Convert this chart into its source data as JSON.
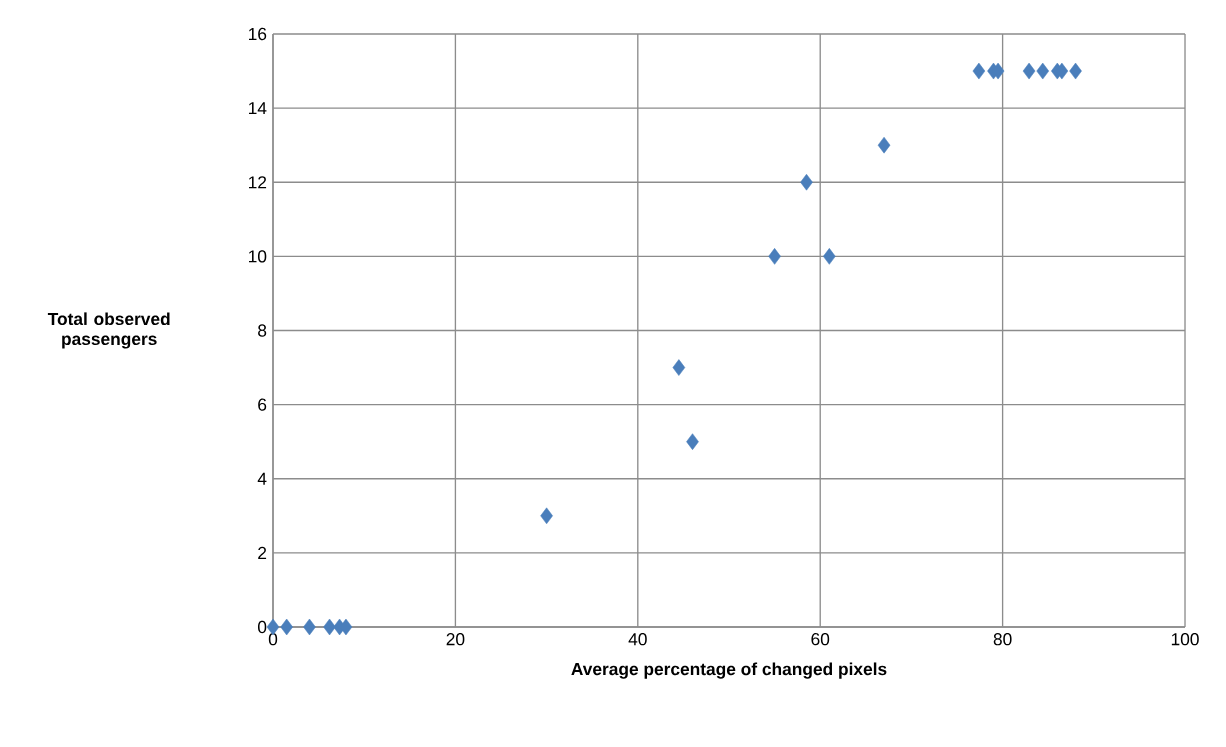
{
  "chart_data": {
    "type": "scatter",
    "xlabel": "Average percentage of changed pixels",
    "ylabel": "Total observed passengers",
    "series": [
      {
        "color": "#4a7ebb",
        "x": [
          0,
          1.5,
          4,
          6.2,
          7.3,
          8,
          30,
          44.5,
          46,
          55,
          58.5,
          61,
          67,
          77.4,
          79,
          79.5,
          82.9,
          84.4,
          86,
          86.5,
          88
        ],
        "values": [
          0,
          0,
          0,
          0,
          0,
          0,
          3,
          7,
          5,
          10,
          12,
          10,
          13,
          15,
          15,
          15,
          15,
          15,
          15,
          15,
          15
        ]
      }
    ],
    "xlim": [
      0,
      100
    ],
    "ylim": [
      0,
      16
    ],
    "xticks": [
      0,
      20,
      40,
      60,
      80,
      100
    ],
    "yticks": [
      0,
      2,
      4,
      6,
      8,
      10,
      12,
      14,
      16
    ],
    "grid": true,
    "marker": "diamond"
  }
}
